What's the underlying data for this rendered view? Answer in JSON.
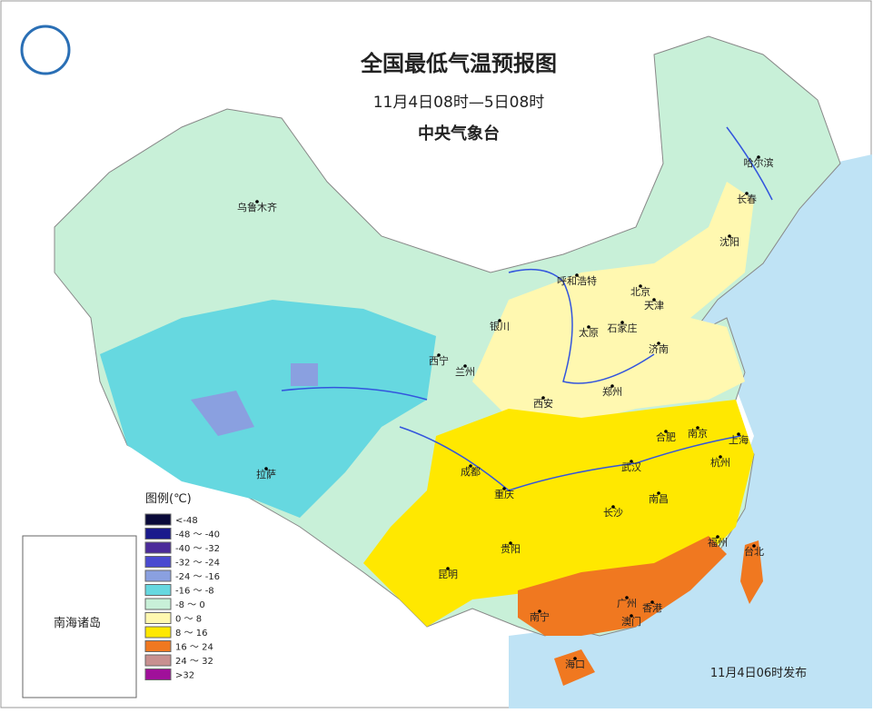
{
  "header": {
    "title": "全国最低气温预报图",
    "subtitle": "11月4日08时—5日08时",
    "issuer": "中央气象台"
  },
  "legend": {
    "title": "图例(℃)",
    "items": [
      {
        "label": "<-48",
        "color": "#0a0a3a"
      },
      {
        "label": "-48 ～ -40",
        "color": "#1a1a8c"
      },
      {
        "label": "-40 ～ -32",
        "color": "#4b2a9a"
      },
      {
        "label": "-32 ～ -24",
        "color": "#4a4ad0"
      },
      {
        "label": "-24 ～ -16",
        "color": "#8aa0e0"
      },
      {
        "label": "-16 ～ -8",
        "color": "#66d8e0"
      },
      {
        "label": "-8 ～ 0",
        "color": "#c8f0d8"
      },
      {
        "label": "0 ～ 8",
        "color": "#fff8b0"
      },
      {
        "label": "8 ～ 16",
        "color": "#ffe800"
      },
      {
        "label": "16 ～ 24",
        "color": "#f07820"
      },
      {
        "label": "24 ～ 32",
        "color": "#c89090"
      },
      {
        "label": ">32",
        "color": "#a0109a"
      }
    ]
  },
  "inset": {
    "label": "南海诸岛"
  },
  "cities": [
    "乌鲁木齐",
    "哈尔滨",
    "长春",
    "沈阳",
    "呼和浩特",
    "北京",
    "天津",
    "银川",
    "太原",
    "石家庄",
    "济南",
    "西宁",
    "兰州",
    "郑州",
    "西安",
    "合肥",
    "南京",
    "上海",
    "成都",
    "武汉",
    "杭州",
    "重庆",
    "南昌",
    "长沙",
    "拉萨",
    "贵阳",
    "福州",
    "台北",
    "昆明",
    "南宁",
    "广州",
    "香港",
    "澳门",
    "海口"
  ],
  "footer": {
    "note": "11月4日06时发布"
  }
}
